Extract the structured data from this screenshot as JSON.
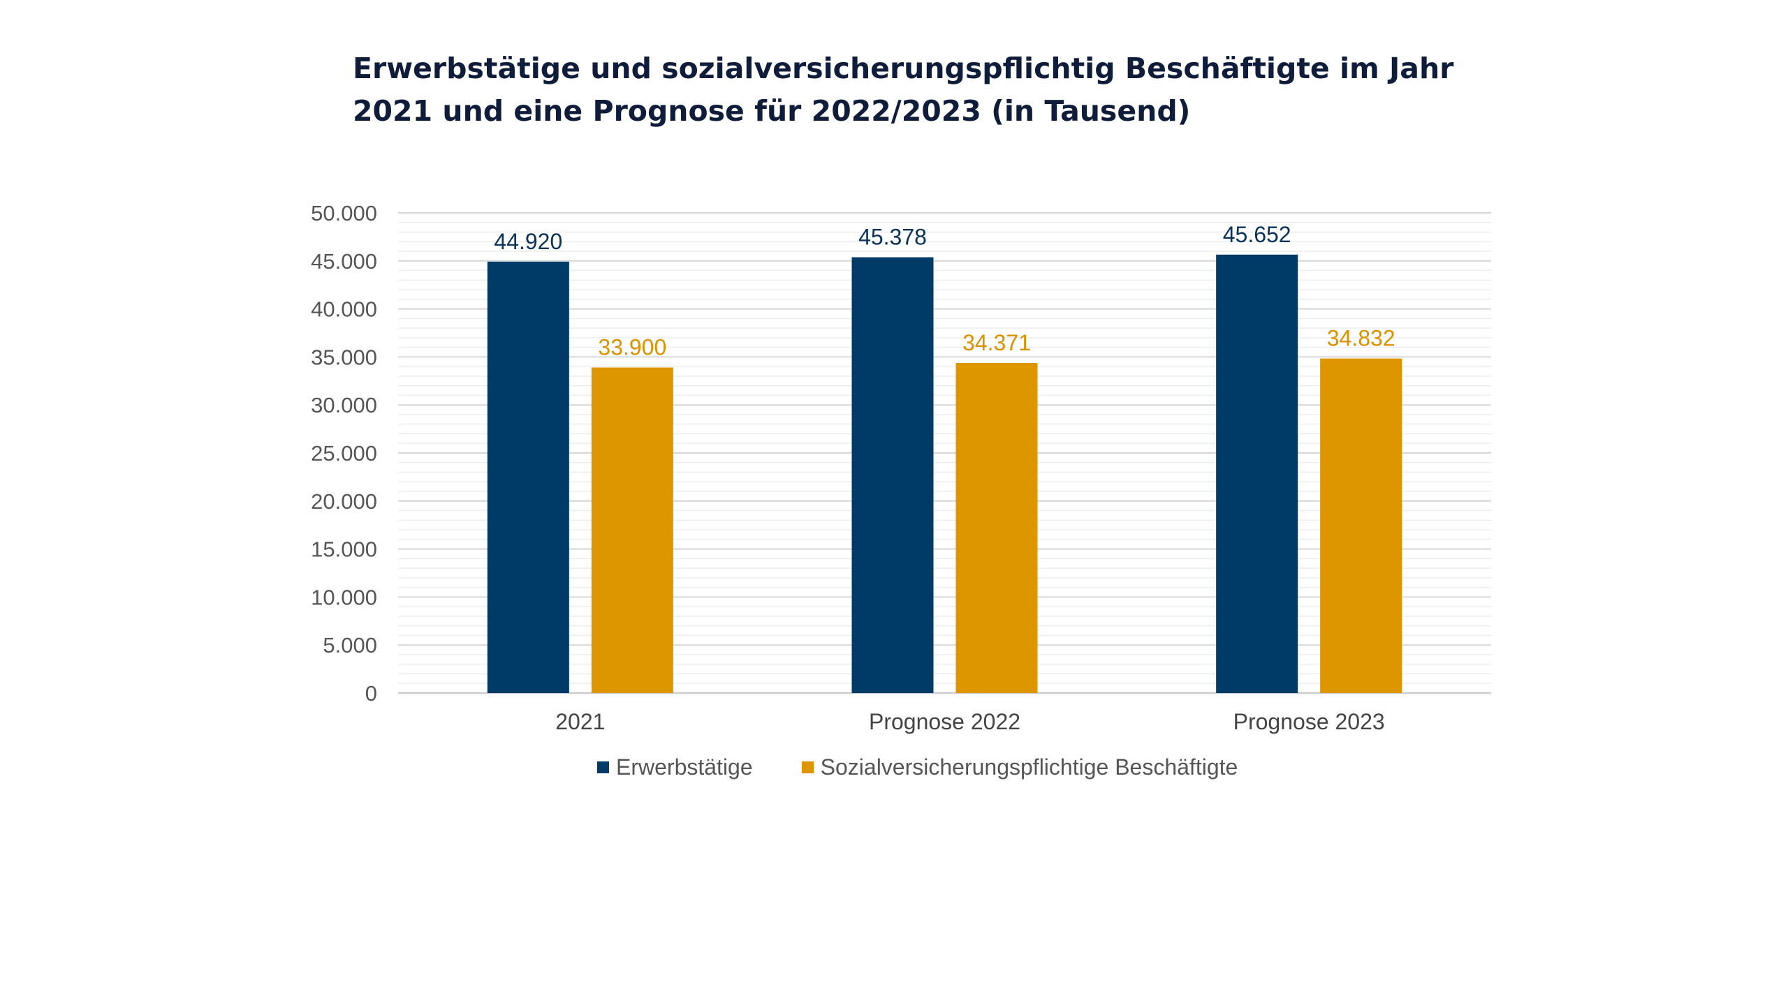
{
  "title_lines": [
    "Erwerbstätige und sozialversicherungspflichtig Beschäftigte im Jahr",
    "2021 und eine Prognose für 2022/2023 (in Tausend)"
  ],
  "legend": [
    {
      "label": "Erwerbstätige",
      "color": "#003a66"
    },
    {
      "label": "Sozialversicherungspflichtige Beschäftigte",
      "color": "#dd9500"
    }
  ],
  "chart_data": {
    "type": "bar",
    "title": "Erwerbstätige und sozialversicherungspflichtig Beschäftigte im Jahr 2021 und eine Prognose für 2022/2023 (in Tausend)",
    "categories": [
      "2021",
      "Prognose 2022",
      "Prognose 2023"
    ],
    "series": [
      {
        "name": "Erwerbstätige",
        "color": "#003a66",
        "values": [
          44920,
          45378,
          45652
        ],
        "labels": [
          "44.920",
          "45.378",
          "45.652"
        ]
      },
      {
        "name": "Sozialversicherungspflichtige Beschäftigte",
        "color": "#dd9500",
        "values": [
          33900,
          34371,
          34832
        ],
        "labels": [
          "33.900",
          "34.371",
          "34.832"
        ]
      }
    ],
    "ylim": [
      0,
      50000
    ],
    "yticks": [
      0,
      5000,
      10000,
      15000,
      20000,
      25000,
      30000,
      35000,
      40000,
      45000,
      50000
    ],
    "ytick_labels": [
      "0",
      "5.000",
      "10.000",
      "15.000",
      "20.000",
      "25.000",
      "30.000",
      "35.000",
      "40.000",
      "45.000",
      "50.000"
    ],
    "minor_gridlines": true,
    "legend_position": "bottom",
    "xlabel": "",
    "ylabel": ""
  }
}
